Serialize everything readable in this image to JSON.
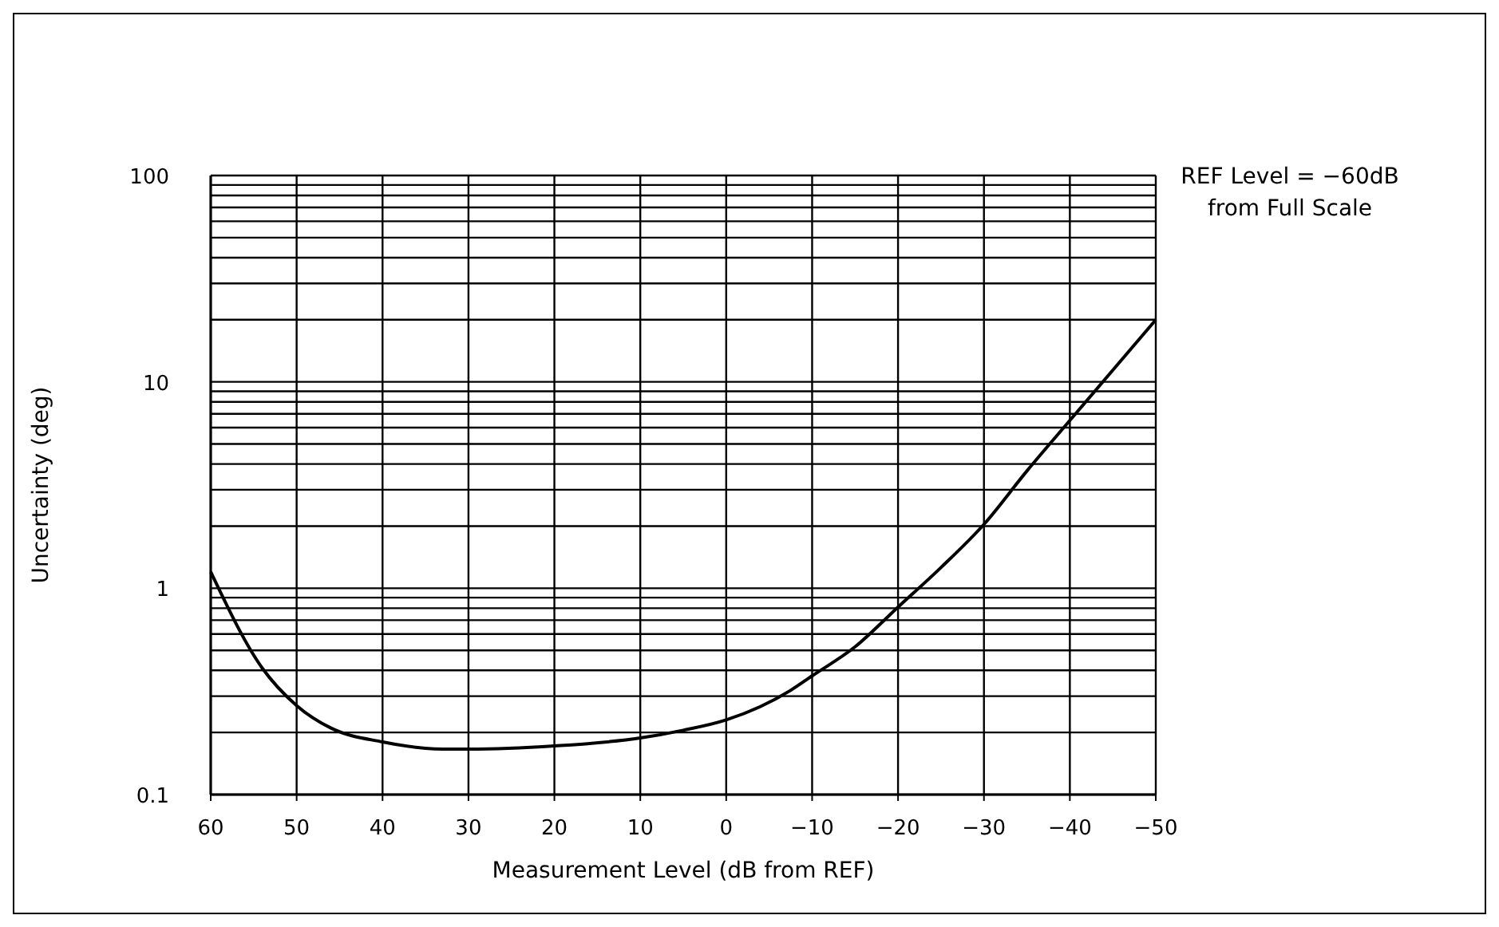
{
  "chart_data": {
    "type": "line",
    "xlabel": "Measurement Level (dB from REF)",
    "ylabel": "Uncertainty (deg)",
    "annotations": [
      "REF Level = −60dB\nfrom Full Scale"
    ],
    "log": "y",
    "grid": true,
    "marker": "none",
    "line_style": "solid",
    "xlim": [
      60,
      -50
    ],
    "ylim": [
      0.1,
      100
    ],
    "xticks": [
      60,
      50,
      40,
      30,
      20,
      10,
      0,
      {
        "value": -10,
        "label": "−10"
      },
      {
        "value": -20,
        "label": "−20"
      },
      {
        "value": -30,
        "label": "−30"
      },
      {
        "value": -40,
        "label": "−40"
      },
      {
        "value": -50,
        "label": "−50"
      }
    ],
    "yticks": [
      0.1,
      {
        "value": 0.2,
        "label": null
      },
      {
        "value": 0.3,
        "label": null
      },
      {
        "value": 0.4,
        "label": null
      },
      {
        "value": 0.5,
        "label": null
      },
      {
        "value": 0.6,
        "label": null
      },
      {
        "value": 0.7,
        "label": null
      },
      {
        "value": 0.8,
        "label": null
      },
      {
        "value": 0.9,
        "label": null
      },
      1,
      {
        "value": 2,
        "label": null
      },
      {
        "value": 3,
        "label": null
      },
      {
        "value": 4,
        "label": null
      },
      {
        "value": 5,
        "label": null
      },
      {
        "value": 6,
        "label": null
      },
      {
        "value": 7,
        "label": null
      },
      {
        "value": 8,
        "label": null
      },
      {
        "value": 9,
        "label": null
      },
      10,
      {
        "value": 20,
        "label": null
      },
      {
        "value": 30,
        "label": null
      },
      {
        "value": 40,
        "label": null
      },
      {
        "value": 50,
        "label": null
      },
      {
        "value": 60,
        "label": null
      },
      {
        "value": 70,
        "label": null
      },
      {
        "value": 80,
        "label": null
      },
      {
        "value": 90,
        "label": null
      },
      100
    ],
    "series": [
      {
        "color": "#000000",
        "x": [
          60,
          54,
          50,
          46,
          40,
          33,
          30,
          20,
          10,
          5,
          0,
          -7.5,
          -10,
          -15,
          -20,
          -25,
          -30,
          -35,
          -40,
          -50
        ],
        "values": [
          1.2,
          0.41,
          0.27,
          0.21,
          0.18,
          0.166,
          0.166,
          0.172,
          0.188,
          0.205,
          0.23,
          0.32,
          0.376,
          0.52,
          0.81,
          1.26,
          2.04,
          3.7,
          6.5,
          20
        ]
      }
    ]
  }
}
